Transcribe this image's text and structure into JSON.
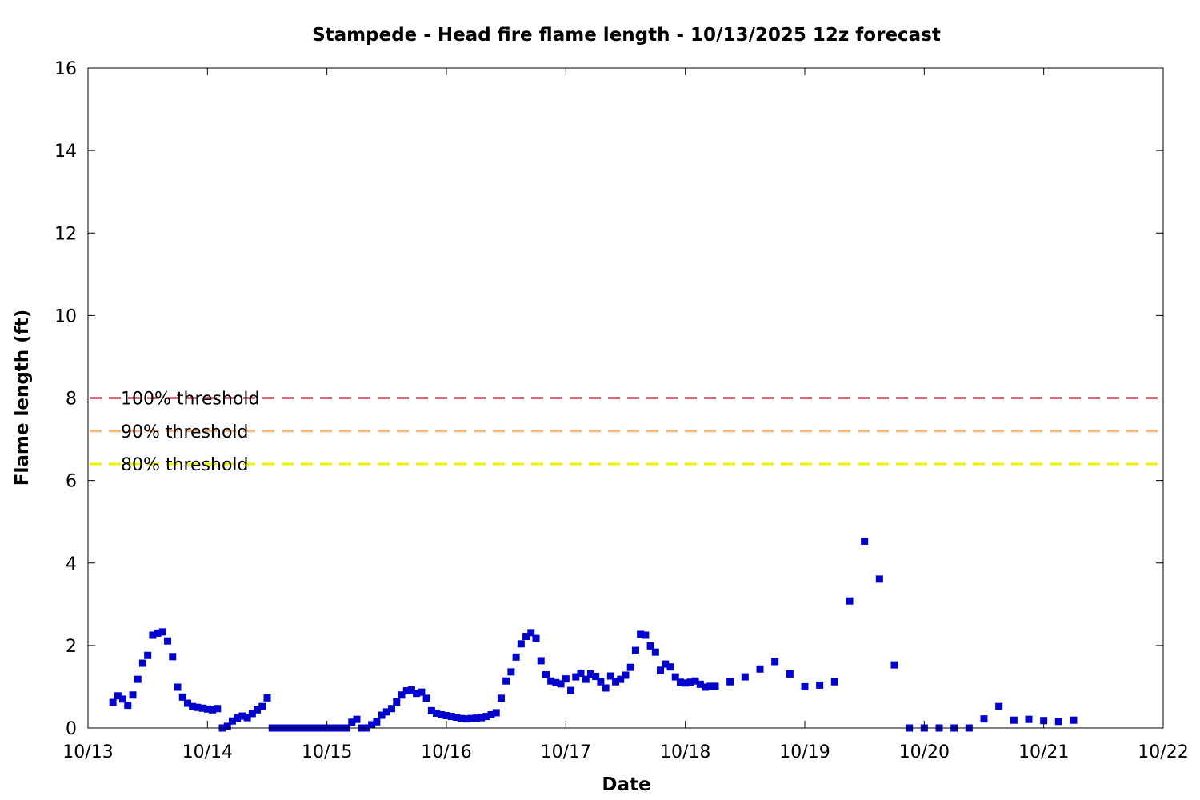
{
  "chart_data": {
    "type": "scatter",
    "title": "Stampede - Head fire flame length - 10/13/2025 12z forecast",
    "xlabel": "Date",
    "ylabel": "Flame length (ft)",
    "xlim": [
      "10/13",
      "10/22"
    ],
    "ylim": [
      0,
      16
    ],
    "x_ticks": [
      "10/13",
      "10/14",
      "10/15",
      "10/16",
      "10/17",
      "10/18",
      "10/19",
      "10/20",
      "10/21",
      "10/22"
    ],
    "y_ticks": [
      0,
      2,
      4,
      6,
      8,
      10,
      12,
      14,
      16
    ],
    "grid": false,
    "legend_position": "left",
    "marker_color": "#0000cc",
    "series": [
      {
        "marker": "square",
        "color": "#0000cc",
        "points": [
          [
            "2025-10-13 05:00",
            0.62
          ],
          [
            "2025-10-13 06:00",
            0.78
          ],
          [
            "2025-10-13 07:00",
            0.7
          ],
          [
            "2025-10-13 08:00",
            0.55
          ],
          [
            "2025-10-13 09:00",
            0.8
          ],
          [
            "2025-10-13 10:00",
            1.18
          ],
          [
            "2025-10-13 11:00",
            1.57
          ],
          [
            "2025-10-13 12:00",
            1.76
          ],
          [
            "2025-10-13 13:00",
            2.25
          ],
          [
            "2025-10-13 14:00",
            2.3
          ],
          [
            "2025-10-13 15:00",
            2.33
          ],
          [
            "2025-10-13 16:00",
            2.11
          ],
          [
            "2025-10-13 17:00",
            1.73
          ],
          [
            "2025-10-13 18:00",
            0.99
          ],
          [
            "2025-10-13 19:00",
            0.75
          ],
          [
            "2025-10-13 20:00",
            0.6
          ],
          [
            "2025-10-13 21:00",
            0.52
          ],
          [
            "2025-10-13 22:00",
            0.5
          ],
          [
            "2025-10-13 23:00",
            0.48
          ],
          [
            "2025-10-14 00:00",
            0.46
          ],
          [
            "2025-10-14 01:00",
            0.44
          ],
          [
            "2025-10-14 02:00",
            0.47
          ],
          [
            "2025-10-14 03:00",
            0.0
          ],
          [
            "2025-10-14 04:00",
            0.04
          ],
          [
            "2025-10-14 05:00",
            0.17
          ],
          [
            "2025-10-14 06:00",
            0.24
          ],
          [
            "2025-10-14 07:00",
            0.29
          ],
          [
            "2025-10-14 08:00",
            0.25
          ],
          [
            "2025-10-14 09:00",
            0.35
          ],
          [
            "2025-10-14 10:00",
            0.44
          ],
          [
            "2025-10-14 11:00",
            0.52
          ],
          [
            "2025-10-14 12:00",
            0.73
          ],
          [
            "2025-10-14 13:00",
            0.0
          ],
          [
            "2025-10-14 14:00",
            0.0
          ],
          [
            "2025-10-14 15:00",
            0.0
          ],
          [
            "2025-10-14 16:00",
            0.0
          ],
          [
            "2025-10-14 17:00",
            0.0
          ],
          [
            "2025-10-14 18:00",
            0.0
          ],
          [
            "2025-10-14 19:00",
            0.0
          ],
          [
            "2025-10-14 20:00",
            0.0
          ],
          [
            "2025-10-14 21:00",
            0.0
          ],
          [
            "2025-10-14 22:00",
            0.0
          ],
          [
            "2025-10-14 23:00",
            0.0
          ],
          [
            "2025-10-15 00:00",
            0.0
          ],
          [
            "2025-10-15 01:00",
            0.0
          ],
          [
            "2025-10-15 02:00",
            0.0
          ],
          [
            "2025-10-15 03:00",
            0.0
          ],
          [
            "2025-10-15 04:00",
            0.0
          ],
          [
            "2025-10-15 05:00",
            0.14
          ],
          [
            "2025-10-15 06:00",
            0.21
          ],
          [
            "2025-10-15 07:00",
            0.0
          ],
          [
            "2025-10-15 08:00",
            0.0
          ],
          [
            "2025-10-15 09:00",
            0.08
          ],
          [
            "2025-10-15 10:00",
            0.15
          ],
          [
            "2025-10-15 11:00",
            0.31
          ],
          [
            "2025-10-15 12:00",
            0.39
          ],
          [
            "2025-10-15 13:00",
            0.47
          ],
          [
            "2025-10-15 14:00",
            0.63
          ],
          [
            "2025-10-15 15:00",
            0.8
          ],
          [
            "2025-10-15 16:00",
            0.9
          ],
          [
            "2025-10-15 17:00",
            0.92
          ],
          [
            "2025-10-15 18:00",
            0.84
          ],
          [
            "2025-10-15 19:00",
            0.87
          ],
          [
            "2025-10-15 20:00",
            0.72
          ],
          [
            "2025-10-15 21:00",
            0.42
          ],
          [
            "2025-10-15 22:00",
            0.36
          ],
          [
            "2025-10-15 23:00",
            0.32
          ],
          [
            "2025-10-16 00:00",
            0.3
          ],
          [
            "2025-10-16 01:00",
            0.28
          ],
          [
            "2025-10-16 02:00",
            0.26
          ],
          [
            "2025-10-16 03:00",
            0.23
          ],
          [
            "2025-10-16 04:00",
            0.22
          ],
          [
            "2025-10-16 05:00",
            0.23
          ],
          [
            "2025-10-16 06:00",
            0.24
          ],
          [
            "2025-10-16 07:00",
            0.25
          ],
          [
            "2025-10-16 08:00",
            0.28
          ],
          [
            "2025-10-16 09:00",
            0.32
          ],
          [
            "2025-10-16 10:00",
            0.37
          ],
          [
            "2025-10-16 11:00",
            0.72
          ],
          [
            "2025-10-16 12:00",
            1.14
          ],
          [
            "2025-10-16 13:00",
            1.36
          ],
          [
            "2025-10-16 14:00",
            1.72
          ],
          [
            "2025-10-16 15:00",
            2.04
          ],
          [
            "2025-10-16 16:00",
            2.22
          ],
          [
            "2025-10-16 17:00",
            2.31
          ],
          [
            "2025-10-16 18:00",
            2.17
          ],
          [
            "2025-10-16 19:00",
            1.63
          ],
          [
            "2025-10-16 20:00",
            1.29
          ],
          [
            "2025-10-16 21:00",
            1.14
          ],
          [
            "2025-10-16 22:00",
            1.1
          ],
          [
            "2025-10-16 23:00",
            1.07
          ],
          [
            "2025-10-17 00:00",
            1.19
          ],
          [
            "2025-10-17 01:00",
            0.91
          ],
          [
            "2025-10-17 02:00",
            1.24
          ],
          [
            "2025-10-17 03:00",
            1.33
          ],
          [
            "2025-10-17 04:00",
            1.18
          ],
          [
            "2025-10-17 05:00",
            1.31
          ],
          [
            "2025-10-17 06:00",
            1.25
          ],
          [
            "2025-10-17 07:00",
            1.12
          ],
          [
            "2025-10-17 08:00",
            0.97
          ],
          [
            "2025-10-17 09:00",
            1.26
          ],
          [
            "2025-10-17 10:00",
            1.12
          ],
          [
            "2025-10-17 11:00",
            1.18
          ],
          [
            "2025-10-17 12:00",
            1.28
          ],
          [
            "2025-10-17 13:00",
            1.47
          ],
          [
            "2025-10-17 14:00",
            1.88
          ],
          [
            "2025-10-17 15:00",
            2.27
          ],
          [
            "2025-10-17 16:00",
            2.25
          ],
          [
            "2025-10-17 17:00",
            1.99
          ],
          [
            "2025-10-17 18:00",
            1.84
          ],
          [
            "2025-10-17 19:00",
            1.4
          ],
          [
            "2025-10-17 20:00",
            1.55
          ],
          [
            "2025-10-17 21:00",
            1.48
          ],
          [
            "2025-10-17 22:00",
            1.24
          ],
          [
            "2025-10-17 23:00",
            1.11
          ],
          [
            "2025-10-18 00:00",
            1.09
          ],
          [
            "2025-10-18 01:00",
            1.11
          ],
          [
            "2025-10-18 02:00",
            1.14
          ],
          [
            "2025-10-18 03:00",
            1.06
          ],
          [
            "2025-10-18 04:00",
            0.99
          ],
          [
            "2025-10-18 05:00",
            1.01
          ],
          [
            "2025-10-18 06:00",
            1.01
          ],
          [
            "2025-10-18 09:00",
            1.12
          ],
          [
            "2025-10-18 12:00",
            1.24
          ],
          [
            "2025-10-18 15:00",
            1.43
          ],
          [
            "2025-10-18 18:00",
            1.61
          ],
          [
            "2025-10-18 21:00",
            1.31
          ],
          [
            "2025-10-19 00:00",
            1.0
          ],
          [
            "2025-10-19 03:00",
            1.04
          ],
          [
            "2025-10-19 06:00",
            1.12
          ],
          [
            "2025-10-19 09:00",
            3.08
          ],
          [
            "2025-10-19 12:00",
            4.53
          ],
          [
            "2025-10-19 15:00",
            3.61
          ],
          [
            "2025-10-19 18:00",
            1.53
          ],
          [
            "2025-10-19 21:00",
            0.0
          ],
          [
            "2025-10-20 00:00",
            0.0
          ],
          [
            "2025-10-20 03:00",
            0.0
          ],
          [
            "2025-10-20 06:00",
            0.0
          ],
          [
            "2025-10-20 09:00",
            0.0
          ],
          [
            "2025-10-20 12:00",
            0.22
          ],
          [
            "2025-10-20 15:00",
            0.52
          ],
          [
            "2025-10-20 18:00",
            0.19
          ],
          [
            "2025-10-20 21:00",
            0.21
          ],
          [
            "2025-10-21 00:00",
            0.18
          ],
          [
            "2025-10-21 03:00",
            0.16
          ],
          [
            "2025-10-21 06:00",
            0.19
          ]
        ]
      }
    ],
    "thresholds": [
      {
        "label": "100% threshold",
        "value": 8.0,
        "color": "#e06a7d"
      },
      {
        "label": "90% threshold",
        "value": 7.2,
        "color": "#f5b784"
      },
      {
        "label": "80% threshold",
        "value": 6.4,
        "color": "#f0f000"
      }
    ]
  }
}
